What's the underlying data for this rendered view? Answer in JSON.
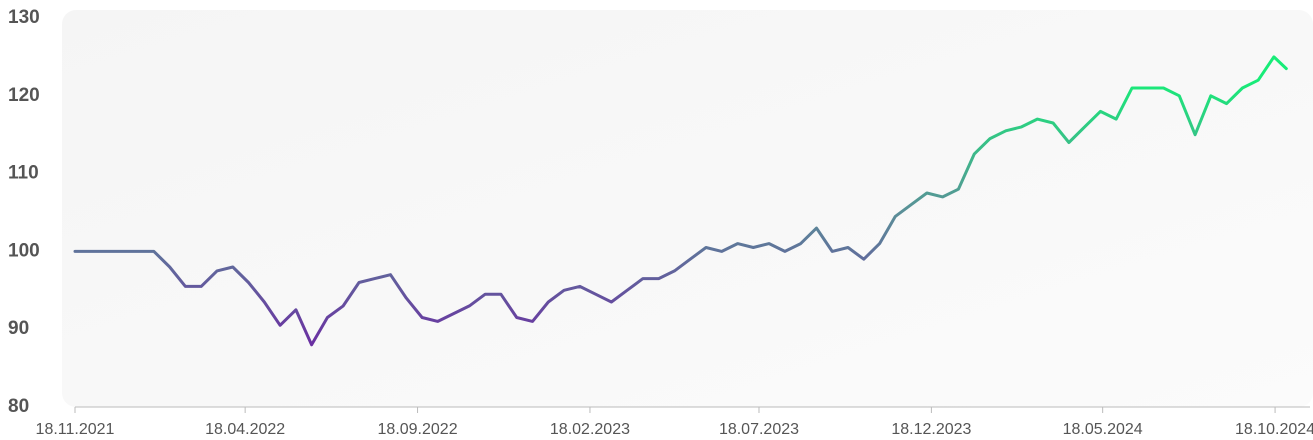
{
  "chart_data": {
    "type": "line",
    "x": [
      "18.11.2021",
      "02.12.2021",
      "16.12.2021",
      "30.12.2021",
      "13.01.2022",
      "27.01.2022",
      "10.02.2022",
      "24.02.2022",
      "10.03.2022",
      "24.03.2022",
      "07.04.2022",
      "21.04.2022",
      "05.05.2022",
      "19.05.2022",
      "02.06.2022",
      "16.06.2022",
      "30.06.2022",
      "14.07.2022",
      "28.07.2022",
      "11.08.2022",
      "25.08.2022",
      "08.09.2022",
      "22.09.2022",
      "06.10.2022",
      "20.10.2022",
      "03.11.2022",
      "17.11.2022",
      "01.12.2022",
      "15.12.2022",
      "29.12.2022",
      "12.01.2023",
      "26.01.2023",
      "09.02.2023",
      "23.02.2023",
      "09.03.2023",
      "23.03.2023",
      "06.04.2023",
      "20.04.2023",
      "04.05.2023",
      "18.05.2023",
      "01.06.2023",
      "15.06.2023",
      "29.06.2023",
      "13.07.2023",
      "27.07.2023",
      "10.08.2023",
      "24.08.2023",
      "07.09.2023",
      "21.09.2023",
      "05.10.2023",
      "19.10.2023",
      "02.11.2023",
      "16.11.2023",
      "30.11.2023",
      "14.12.2023",
      "28.12.2023",
      "11.01.2024",
      "25.01.2024",
      "08.02.2024",
      "22.02.2024",
      "07.03.2024",
      "21.03.2024",
      "04.04.2024",
      "18.04.2024",
      "02.05.2024",
      "16.05.2024",
      "30.05.2024",
      "13.06.2024",
      "27.06.2024",
      "11.07.2024",
      "25.07.2024",
      "08.08.2024",
      "22.08.2024",
      "05.09.2024",
      "19.09.2024",
      "03.10.2024",
      "17.10.2024",
      "28.10.2024"
    ],
    "values": [
      100,
      100,
      100,
      100,
      100,
      100,
      98,
      95.5,
      95.5,
      97.5,
      98,
      96,
      93.5,
      90.5,
      92.5,
      88,
      91.5,
      93,
      96,
      96.5,
      97,
      94,
      91.5,
      91,
      92,
      93,
      94.5,
      94.5,
      91.5,
      91,
      93.5,
      95,
      95.5,
      94.5,
      93.5,
      95,
      96.5,
      96.5,
      97.5,
      99,
      100.5,
      100,
      101,
      100.5,
      101,
      100,
      101,
      103,
      100,
      100.5,
      99,
      101,
      104.5,
      106,
      107.5,
      107,
      108,
      112.5,
      114.5,
      115.5,
      116,
      117,
      116.5,
      114,
      116,
      118,
      117,
      121,
      121,
      121,
      120,
      115,
      120,
      119,
      121,
      122,
      125,
      123.5
    ],
    "gradient_colors": [
      "#6a2fa2",
      "#5b8f98",
      "#18ec78"
    ],
    "xlim": [
      "18.11.2021",
      "18.11.2024"
    ],
    "xticks": [
      "18.11.2021",
      "18.04.2022",
      "18.09.2022",
      "18.02.2023",
      "18.07.2023",
      "18.12.2023",
      "18.05.2024",
      "18.10.2024"
    ],
    "ylim": [
      80,
      130
    ],
    "yticks": [
      80,
      90,
      100,
      110,
      120,
      130
    ]
  }
}
